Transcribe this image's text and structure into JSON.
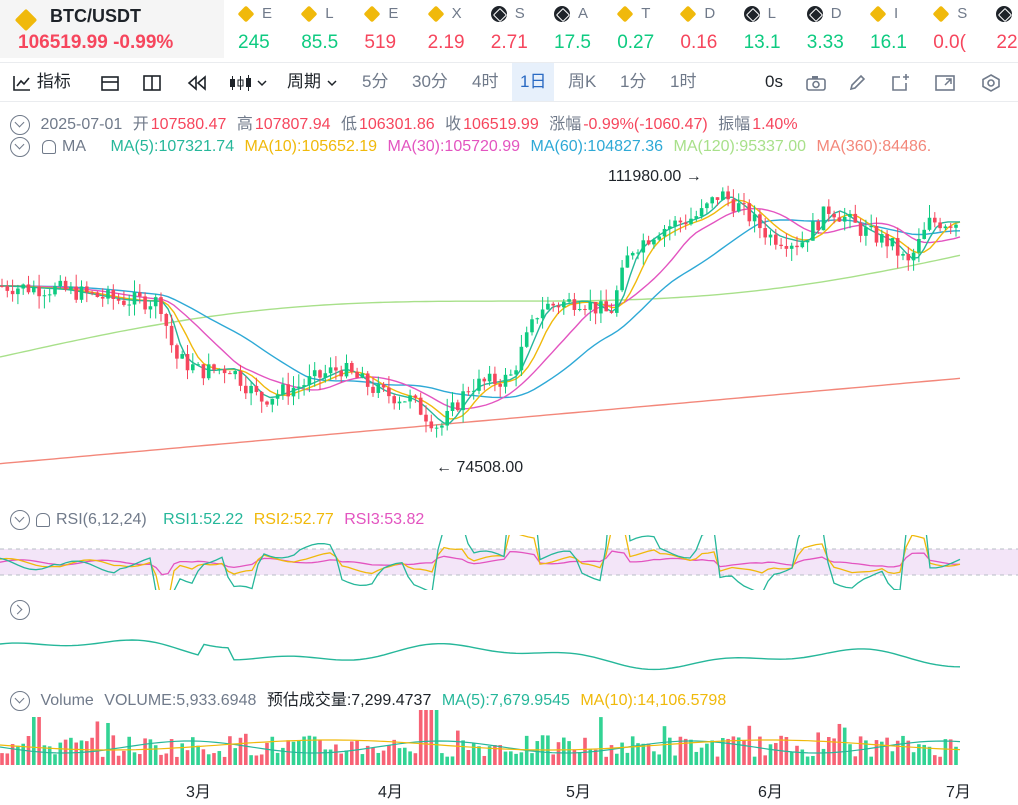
{
  "colors": {
    "up": "#0ecb81",
    "down": "#f6465d",
    "ma5": "#26b79a",
    "ma10": "#f0b90b",
    "ma30": "#e354c0",
    "ma60": "#2ea9d6",
    "ma120": "#a8e08a",
    "ma360": "#f3877a",
    "rsi1": "#26b79a",
    "rsi2": "#f0b90b",
    "rsi3": "#e354c0"
  },
  "ticker": {
    "symbol": "BTC/USDT",
    "price": "106519.99",
    "change": "-0.99%",
    "items": [
      {
        "icon": "bnb-icon",
        "name": "E",
        "value": "245",
        "dir": "up"
      },
      {
        "icon": "bnb-icon",
        "name": "L",
        "value": "85.5",
        "dir": "up"
      },
      {
        "icon": "bnb-icon",
        "name": "E",
        "value": "519",
        "dir": "down"
      },
      {
        "icon": "bnb-icon",
        "name": "X",
        "value": "2.19",
        "dir": "down"
      },
      {
        "icon": "coin-icon",
        "name": "S",
        "value": "2.71",
        "dir": "down"
      },
      {
        "icon": "coin-icon",
        "name": "A",
        "value": "17.5",
        "dir": "up"
      },
      {
        "icon": "bnb-icon",
        "name": "T",
        "value": "0.27",
        "dir": "up"
      },
      {
        "icon": "bnb-icon",
        "name": "D",
        "value": "0.16",
        "dir": "down"
      },
      {
        "icon": "coin-icon",
        "name": "L",
        "value": "13.1",
        "dir": "up"
      },
      {
        "icon": "coin-icon",
        "name": "D",
        "value": "3.33",
        "dir": "up"
      },
      {
        "icon": "bnb-icon",
        "name": "I",
        "value": "16.1",
        "dir": "up"
      },
      {
        "icon": "bnb-icon",
        "name": "S",
        "value": "0.0(",
        "dir": "down"
      },
      {
        "icon": "coin-icon",
        "name": "",
        "value": "22.",
        "dir": "down"
      }
    ]
  },
  "toolbar": {
    "indicator": "指标",
    "period": "周期",
    "p5m": "5分",
    "p30m": "30分",
    "p4h": "4时",
    "p1d": "1日",
    "pweek": "周K",
    "p1m": "1分",
    "p1h": "1时",
    "seconds": "0s"
  },
  "ohlc": {
    "date": "2025-07-01",
    "open_label": "开",
    "open": "107580.47",
    "high_label": "高",
    "high": "107807.94",
    "low_label": "低",
    "low": "106301.86",
    "close_label": "收",
    "close": "106519.99",
    "chg_label": "涨幅",
    "chg": "-0.99%(-1060.47)",
    "amp_label": "振幅",
    "amp": "1.40%"
  },
  "ma": {
    "label": "MA",
    "ma5": "MA(5):107321.74",
    "ma10": "MA(10):105652.19",
    "ma30": "MA(30):105720.99",
    "ma60": "MA(60):104827.36",
    "ma120": "MA(120):95337.00",
    "ma360": "MA(360):84486."
  },
  "annotations": {
    "high": "111980.00",
    "low": "74508.00"
  },
  "rsi": {
    "label": "RSI(6,12,24)",
    "rsi1": "RSI1:52.22",
    "rsi2": "RSI2:52.77",
    "rsi3": "RSI3:53.82"
  },
  "volume": {
    "label": "Volume",
    "vol": "VOLUME:5,933.6948",
    "est": "预估成交量:7,299.4737",
    "ma5": "MA(5):7,679.9545",
    "ma10": "MA(10):14,106.5798"
  },
  "xaxis": [
    "3月",
    "4月",
    "5月",
    "6月",
    "7月"
  ]
}
